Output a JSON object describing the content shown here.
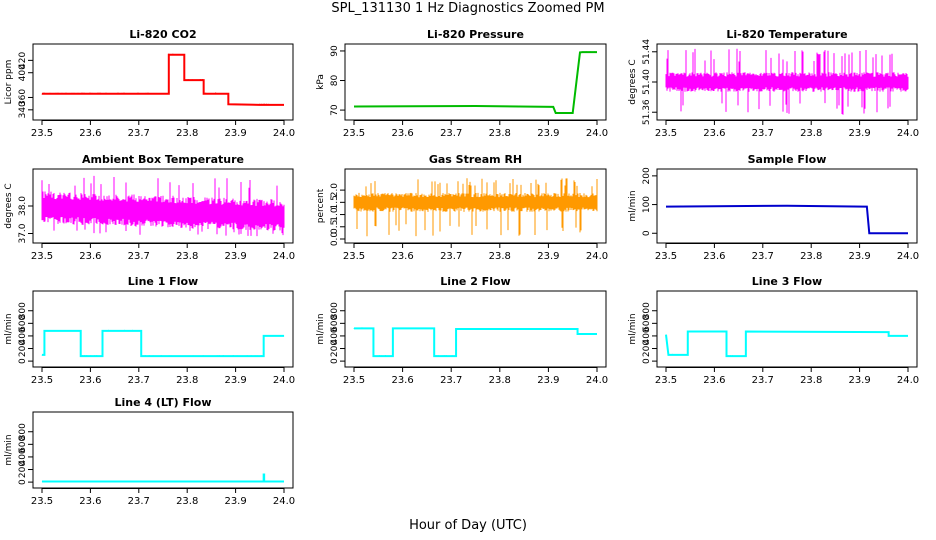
{
  "figure": {
    "title": "SPL_131130  1 Hz Diagnostics Zoomed PM",
    "xlabel": "Hour of Day (UTC)"
  },
  "chart_data": [
    {
      "type": "line",
      "title": "Li-820 CO2",
      "xlabel": "",
      "ylabel": "Licor ppm",
      "color": "#ff0000",
      "xlim": [
        23.5,
        24.0
      ],
      "ylim": [
        330,
        440
      ],
      "xticks": [
        "23.5",
        "23.6",
        "23.7",
        "23.8",
        "23.9",
        "24.0"
      ],
      "yticks": [
        "340",
        "360",
        "400",
        "420"
      ],
      "series": [
        {
          "x": [
            23.5,
            23.762,
            23.762,
            23.794,
            23.794,
            23.834,
            23.834,
            23.885,
            23.885,
            23.95,
            23.96,
            23.96,
            24.0
          ],
          "y": [
            366,
            366,
            429,
            429,
            388,
            388,
            366,
            366,
            349,
            348,
            348,
            348,
            348
          ],
          "noise": 1
        }
      ]
    },
    {
      "type": "line",
      "title": "Li-820 Pressure",
      "xlabel": "",
      "ylabel": "kPa",
      "color": "#00bb00",
      "xlim": [
        23.5,
        24.0
      ],
      "ylim": [
        68,
        91
      ],
      "xticks": [
        "23.5",
        "23.6",
        "23.7",
        "23.8",
        "23.9",
        "24.0"
      ],
      "yticks": [
        "70",
        "80",
        "90"
      ],
      "series": [
        {
          "x": [
            23.5,
            23.75,
            23.91,
            23.915,
            23.95,
            23.958,
            23.965,
            23.97,
            24.0
          ],
          "y": [
            71.2,
            71.4,
            71.1,
            69.0,
            69.0,
            80.0,
            89.5,
            89.6,
            89.6
          ],
          "noise": 0.15
        }
      ]
    },
    {
      "type": "line",
      "title": "Li-820 Temperature",
      "xlabel": "",
      "ylabel": "degrees C",
      "color": "#ff00ff",
      "xlim": [
        23.5,
        24.0
      ],
      "ylim": [
        51.355,
        51.445
      ],
      "xticks": [
        "23.5",
        "23.6",
        "23.7",
        "23.8",
        "23.9",
        "24.0"
      ],
      "yticks": [
        "51.36",
        "51.40",
        "51.44"
      ],
      "series": [
        {
          "x": [
            23.5,
            24.0
          ],
          "y": [
            51.4,
            51.4
          ],
          "band": [
            51.39,
            51.41
          ],
          "spikes": [
            51.356,
            51.444
          ]
        }
      ]
    },
    {
      "type": "line",
      "title": "Ambient Box Temperature",
      "xlabel": "",
      "ylabel": "degrees C",
      "color": "#ff00ff",
      "xlim": [
        23.5,
        24.0
      ],
      "ylim": [
        36.8,
        39.2
      ],
      "xticks": [
        "23.5",
        "23.6",
        "23.7",
        "23.8",
        "23.9",
        "24.0"
      ],
      "yticks": [
        "37.0",
        "38.0"
      ],
      "series": [
        {
          "x": [
            23.5,
            24.0
          ],
          "y": [
            38.0,
            37.7
          ],
          "band": [
            37.5,
            38.4
          ],
          "spikes": [
            36.9,
            39.1
          ]
        }
      ]
    },
    {
      "type": "line",
      "title": "Gas Stream RH",
      "xlabel": "",
      "ylabel": "percent",
      "color": "#ff9900",
      "xlim": [
        23.5,
        24.0
      ],
      "ylim": [
        0,
        2.7
      ],
      "xticks": [
        "23.5",
        "23.6",
        "23.7",
        "23.8",
        "23.9",
        "24.0"
      ],
      "yticks": [
        "0.0",
        "0.5",
        "1.0",
        "1.5",
        "2.0"
      ],
      "series": [
        {
          "x": [
            23.5,
            24.0
          ],
          "y": [
            1.5,
            1.5
          ],
          "band": [
            1.2,
            1.8
          ],
          "spikes": [
            0.1,
            2.5
          ]
        }
      ]
    },
    {
      "type": "line",
      "title": "Sample Flow",
      "xlabel": "",
      "ylabel": "ml/min",
      "color": "#0000cc",
      "xlim": [
        23.5,
        24.0
      ],
      "ylim": [
        -20,
        210
      ],
      "xticks": [
        "23.5",
        "23.6",
        "23.7",
        "23.8",
        "23.9",
        "24.0"
      ],
      "yticks": [
        "0",
        "100",
        "200"
      ],
      "series": [
        {
          "x": [
            23.5,
            23.75,
            23.91,
            23.915,
            23.92,
            24.0
          ],
          "y": [
            93,
            96,
            93,
            93,
            0,
            0
          ],
          "noise": 1
        }
      ]
    },
    {
      "type": "line",
      "title": "Line 1 Flow",
      "xlabel": "",
      "ylabel": "ml/min",
      "color": "#00ffff",
      "xlim": [
        23.5,
        24.0
      ],
      "ylim": [
        -30,
        1050
      ],
      "xticks": [
        "23.5",
        "23.6",
        "23.7",
        "23.8",
        "23.9",
        "24.0"
      ],
      "yticks": [
        "0",
        "200",
        "400",
        "600",
        "800"
      ],
      "series": [
        {
          "x": [
            23.5,
            23.505,
            23.505,
            23.58,
            23.58,
            23.625,
            23.625,
            23.705,
            23.705,
            23.958,
            23.958,
            24.0
          ],
          "y": [
            100,
            100,
            480,
            480,
            80,
            80,
            480,
            480,
            80,
            80,
            400,
            400
          ],
          "noise": 8
        }
      ]
    },
    {
      "type": "line",
      "title": "Line 2 Flow",
      "xlabel": "",
      "ylabel": "ml/min",
      "color": "#00ffff",
      "xlim": [
        23.5,
        24.0
      ],
      "ylim": [
        -30,
        1050
      ],
      "xticks": [
        "23.5",
        "23.6",
        "23.7",
        "23.8",
        "23.9",
        "24.0"
      ],
      "yticks": [
        "0",
        "200",
        "400",
        "600",
        "800"
      ],
      "series": [
        {
          "x": [
            23.5,
            23.54,
            23.54,
            23.58,
            23.58,
            23.665,
            23.665,
            23.71,
            23.71,
            23.96,
            23.96,
            24.0
          ],
          "y": [
            520,
            520,
            80,
            80,
            520,
            520,
            80,
            80,
            510,
            510,
            430,
            430
          ],
          "noise": 8
        }
      ]
    },
    {
      "type": "line",
      "title": "Line 3 Flow",
      "xlabel": "",
      "ylabel": "ml/min",
      "color": "#00ffff",
      "xlim": [
        23.5,
        24.0
      ],
      "ylim": [
        -30,
        1050
      ],
      "xticks": [
        "23.5",
        "23.6",
        "23.7",
        "23.8",
        "23.9",
        "24.0"
      ],
      "yticks": [
        "0",
        "200",
        "400",
        "600",
        "800"
      ],
      "series": [
        {
          "x": [
            23.5,
            23.505,
            23.505,
            23.545,
            23.545,
            23.625,
            23.625,
            23.665,
            23.665,
            23.96,
            23.96,
            24.0
          ],
          "y": [
            420,
            100,
            100,
            100,
            470,
            470,
            80,
            80,
            470,
            460,
            400,
            400
          ],
          "noise": 8
        }
      ]
    },
    {
      "type": "line",
      "title": "Line 4 (LT) Flow",
      "xlabel": "",
      "ylabel": "ml/min",
      "color": "#00ffff",
      "xlim": [
        23.5,
        24.0
      ],
      "ylim": [
        -30,
        1050
      ],
      "xticks": [
        "23.5",
        "23.6",
        "23.7",
        "23.8",
        "23.9",
        "24.0"
      ],
      "yticks": [
        "0",
        "200",
        "400",
        "600",
        "800"
      ],
      "series": [
        {
          "x": [
            23.5,
            23.958,
            23.958,
            23.959,
            23.959,
            24.0
          ],
          "y": [
            10,
            10,
            120,
            120,
            10,
            10
          ],
          "noise": 1
        }
      ]
    }
  ]
}
